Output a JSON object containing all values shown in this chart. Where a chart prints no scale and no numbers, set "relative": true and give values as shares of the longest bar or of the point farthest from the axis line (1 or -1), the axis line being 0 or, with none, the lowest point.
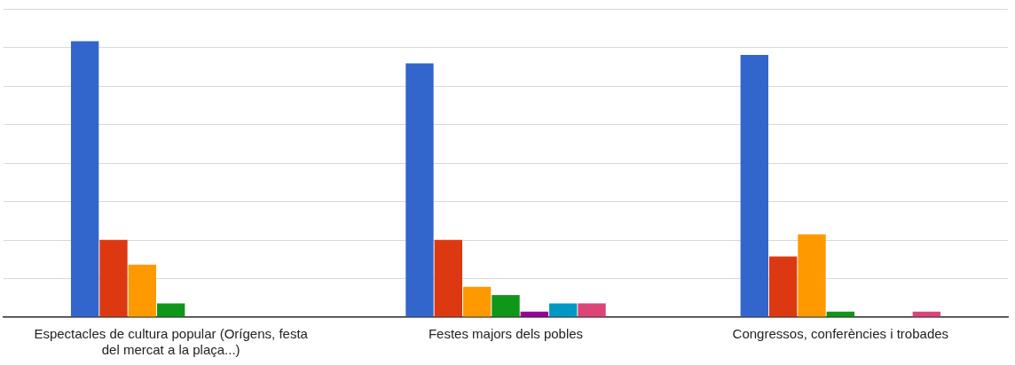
{
  "chart_data": {
    "type": "bar",
    "relative": true,
    "grid": "y",
    "legend": false,
    "categories": [
      "Espectacles de cultura popular (Orígens, festa del mercat a la plaça...)",
      "Festes majors dels pobles",
      "Congressos, conferències i trobades"
    ],
    "series": [
      {
        "color": "#3366cc",
        "values": [
          1,
          0.92,
          0.95
        ]
      },
      {
        "color": "#dc3912",
        "values": [
          0.28,
          0.28,
          0.22
        ]
      },
      {
        "color": "#ff9900",
        "values": [
          0.19,
          0.11,
          0.3
        ]
      },
      {
        "color": "#109618",
        "values": [
          0.05,
          0.08,
          0.02
        ]
      },
      {
        "color": "#990099",
        "values": [
          0,
          0.02,
          0
        ]
      },
      {
        "color": "#0099c6",
        "values": [
          0,
          0.05,
          0
        ]
      },
      {
        "color": "#dd4477",
        "values": [
          0,
          0.05,
          0.02
        ]
      }
    ]
  }
}
